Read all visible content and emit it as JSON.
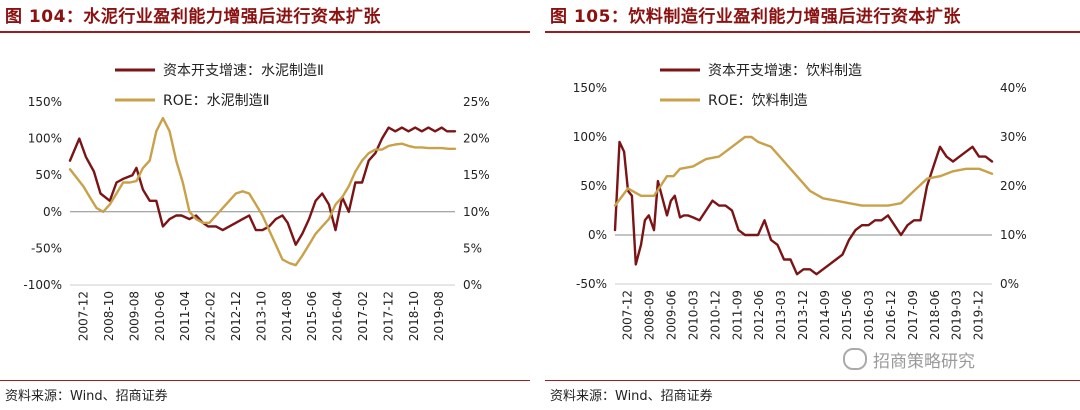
{
  "charts": [
    {
      "title": "图 104：水泥行业盈利能力增强后进行资本扩张",
      "source": "资料来源：Wind、招商证券",
      "chart_data": {
        "type": "line",
        "title": "图 104：水泥行业盈利能力增强后进行资本扩张",
        "x_tick_labels": [
          "2007-12",
          "2008-10",
          "2009-08",
          "2010-06",
          "2011-04",
          "2012-02",
          "2012-12",
          "2013-10",
          "2014-08",
          "2015-06",
          "2016-04",
          "2017-02",
          "2017-12",
          "2018-10",
          "2019-08"
        ],
        "left_axis": {
          "ylim": [
            -100,
            150
          ],
          "ticks": [
            -100,
            -50,
            0,
            50,
            100,
            150
          ],
          "tick_labels": [
            "-100%",
            "-50%",
            "0%",
            "50%",
            "100%",
            "150%"
          ]
        },
        "right_axis": {
          "ylim": [
            0,
            25
          ],
          "ticks": [
            0,
            5,
            10,
            15,
            20,
            25
          ],
          "tick_labels": [
            "0%",
            "5%",
            "10%",
            "15%",
            "20%",
            "25%"
          ]
        },
        "series": [
          {
            "name": "资本开支增速：水泥制造Ⅱ",
            "axis": "left",
            "color": "#7b1416",
            "t": [
              0,
              0.7,
              1.2,
              1.8,
              2.3,
              3,
              3.5,
              4,
              4.7,
              5,
              5.5,
              6,
              6.5,
              7,
              7.5,
              8,
              8.4,
              9,
              9.5,
              10,
              10.4,
              11,
              11.5,
              12,
              12.5,
              13,
              13.5,
              14,
              14.5,
              15,
              15.5,
              16,
              16.4,
              17,
              17.5,
              18,
              18.5,
              19,
              19.5,
              20,
              20.5,
              21,
              21.5,
              22,
              22.5,
              23,
              23.5,
              24,
              24.5,
              25,
              25.5,
              26,
              26.5,
              27,
              27.5,
              28,
              28.4,
              28.7,
              29
            ],
            "values": [
              70,
              100,
              75,
              55,
              25,
              15,
              40,
              45,
              50,
              60,
              30,
              15,
              15,
              -20,
              -10,
              -5,
              -5,
              -10,
              -5,
              -15,
              -20,
              -20,
              -25,
              -20,
              -15,
              -10,
              -5,
              -25,
              -25,
              -20,
              -10,
              -5,
              -15,
              -45,
              -30,
              -10,
              15,
              25,
              10,
              -25,
              20,
              0,
              40,
              40,
              70,
              80,
              100,
              115,
              110,
              115,
              110,
              115,
              110,
              115,
              110,
              115,
              110,
              110,
              110
            ],
            "note": "approximate monthly readings"
          },
          {
            "name": "ROE：水泥制造Ⅱ",
            "axis": "right",
            "color": "#c9a14a",
            "t": [
              0,
              1,
              1.5,
              2,
              2.5,
              3,
              3.5,
              4,
              4.5,
              5,
              5.5,
              6,
              6.5,
              7,
              7.5,
              8,
              8.5,
              9,
              9.5,
              10,
              10.5,
              11,
              11.5,
              12,
              12.5,
              13,
              13.5,
              14,
              14.5,
              15,
              15.5,
              16,
              16.5,
              17,
              17.5,
              18,
              18.5,
              19,
              19.5,
              20,
              20.5,
              21,
              21.5,
              22,
              22.5,
              23,
              23.5,
              24,
              24.5,
              25,
              25.5,
              26,
              26.5,
              27,
              27.5,
              28,
              28.5,
              29
            ],
            "values": [
              15.8,
              13.5,
              12,
              10.5,
              10,
              11,
              12.5,
              14,
              14,
              14.2,
              16,
              17,
              21,
              22.8,
              21,
              17,
              14,
              10,
              9,
              8.5,
              8.5,
              9.5,
              10.5,
              11.5,
              12.5,
              12.8,
              12.5,
              11,
              9.5,
              7.5,
              5.5,
              3.5,
              3,
              2.7,
              4,
              5.5,
              7,
              8,
              9,
              11,
              12,
              13.5,
              15.5,
              17,
              18,
              18.5,
              18.5,
              19,
              19.2,
              19.3,
              19,
              18.8,
              18.8,
              18.7,
              18.7,
              18.7,
              18.6,
              18.6
            ]
          }
        ],
        "legend": [
          "资本开支增速：水泥制造Ⅱ",
          "ROE：水泥制造Ⅱ"
        ],
        "legend_position": "top-center"
      }
    },
    {
      "title": "图 105：饮料制造行业盈利能力增强后进行资本扩张",
      "source": "资料来源：Wind、招商证券",
      "chart_data": {
        "type": "line",
        "title": "图 105：饮料制造行业盈利能力增强后进行资本扩张",
        "x_tick_labels": [
          "2007-12",
          "2008-09",
          "2009-06",
          "2010-03",
          "2010-12",
          "2011-09",
          "2012-06",
          "2013-03",
          "2013-12",
          "2014-09",
          "2015-06",
          "2016-03",
          "2016-12",
          "2017-09",
          "2018-06",
          "2019-03",
          "2019-12"
        ],
        "left_axis": {
          "ylim": [
            -50,
            150
          ],
          "ticks": [
            -50,
            0,
            50,
            100,
            150
          ],
          "tick_labels": [
            "-50%",
            "0%",
            "50%",
            "100%",
            "150%"
          ]
        },
        "right_axis": {
          "ylim": [
            0,
            40
          ],
          "ticks": [
            0,
            10,
            20,
            30,
            40
          ],
          "tick_labels": [
            "0%",
            "10%",
            "20%",
            "30%",
            "40%"
          ]
        },
        "series": [
          {
            "name": "资本开支增速：饮料制造",
            "axis": "left",
            "color": "#7b1416",
            "t": [
              0,
              0.35,
              0.7,
              1,
              1.3,
              1.6,
              2,
              2.3,
              2.6,
              3,
              3.3,
              3.6,
              4,
              4.3,
              4.6,
              5,
              5.3,
              5.6,
              6,
              6.5,
              7,
              7.5,
              8,
              8.5,
              9,
              9.5,
              10,
              10.5,
              11,
              11.5,
              12,
              12.5,
              13,
              13.5,
              14,
              14.5,
              15,
              15.5,
              16,
              16.5,
              17,
              17.5,
              18,
              18.5,
              19,
              19.5,
              20,
              20.5,
              21,
              21.5,
              22,
              22.5,
              23,
              23.5,
              24,
              24.5,
              25,
              25.5,
              26,
              26.5,
              27,
              27.5,
              28,
              28.5,
              29
            ],
            "values": [
              5,
              95,
              85,
              45,
              40,
              -30,
              -10,
              15,
              20,
              5,
              55,
              40,
              20,
              35,
              40,
              18,
              20,
              20,
              18,
              15,
              25,
              35,
              30,
              30,
              25,
              5,
              0,
              0,
              0,
              15,
              -5,
              -10,
              -25,
              -25,
              -40,
              -35,
              -35,
              -40,
              -35,
              -30,
              -25,
              -20,
              -5,
              5,
              10,
              10,
              15,
              15,
              20,
              10,
              0,
              10,
              15,
              15,
              50,
              70,
              90,
              80,
              75,
              80,
              85,
              90,
              80,
              80,
              75
            ],
            "note": "approximate monthly readings"
          },
          {
            "name": "ROE：饮料制造",
            "axis": "right",
            "color": "#c9a14a",
            "t": [
              0,
              1,
              2,
              2.5,
              3,
              3.5,
              4,
              4.5,
              5,
              6,
              7,
              8,
              9,
              10,
              10.5,
              11,
              12,
              13,
              14,
              15,
              16,
              17,
              18,
              19,
              20,
              21,
              22,
              23,
              24,
              25,
              26,
              27,
              28,
              29
            ],
            "values": [
              16,
              19.5,
              18,
              18,
              18,
              20,
              22,
              22,
              23.5,
              24,
              25.5,
              26,
              28,
              30,
              30,
              29,
              28,
              25,
              22,
              19,
              17.5,
              17,
              16.5,
              16,
              16,
              16,
              16.5,
              19,
              21.5,
              22,
              23,
              23.5,
              23.5,
              22.5
            ]
          }
        ],
        "legend": [
          "资本开支增速：饮料制造",
          "ROE：饮料制造"
        ],
        "legend_position": "top-center"
      }
    }
  ],
  "watermark": "招商策略研究"
}
